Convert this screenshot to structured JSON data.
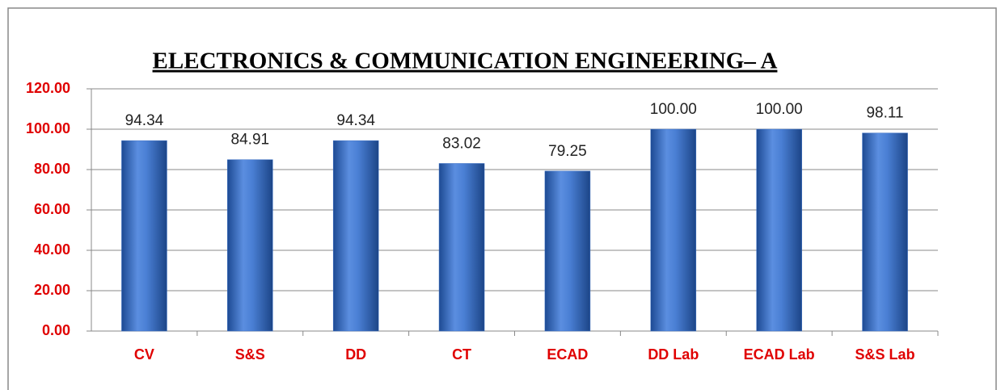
{
  "chart_data": {
    "type": "bar",
    "title": "ELECTRONICS & COMMUNICATION ENGINEERING– A",
    "categories": [
      "CV",
      "S&S",
      "DD",
      "CT",
      "ECAD",
      "DD Lab",
      "ECAD Lab",
      "S&S Lab"
    ],
    "values": [
      94.34,
      84.91,
      94.34,
      83.02,
      79.25,
      100,
      100,
      98.11
    ],
    "value_labels": [
      "94.34",
      "84.91",
      "94.34",
      "83.02",
      "79.25",
      "100.00",
      "100.00",
      "98.11"
    ],
    "color": "#3a6fc4",
    "ylim": [
      0,
      120
    ],
    "yticks": [
      {
        "value": 0,
        "label": "0.00"
      },
      {
        "value": 20,
        "label": "20.00"
      },
      {
        "value": 40,
        "label": "40.00"
      },
      {
        "value": 60,
        "label": "60.00"
      },
      {
        "value": 80,
        "label": "80.00"
      },
      {
        "value": 100,
        "label": "100.00"
      },
      {
        "value": 120,
        "label": "120.00"
      }
    ],
    "grid": true
  }
}
